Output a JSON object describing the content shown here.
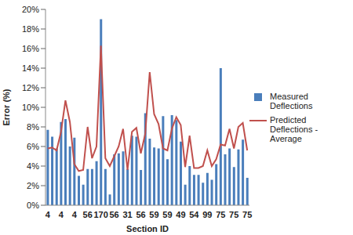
{
  "chart_data": {
    "type": "bar",
    "x_label": "Section ID",
    "y_label": "Error (%)",
    "categories": [
      "4",
      null,
      null,
      "4",
      null,
      null,
      "4",
      null,
      null,
      "56",
      null,
      null,
      "170",
      null,
      null,
      "56",
      null,
      null,
      "31",
      null,
      null,
      "56",
      null,
      null,
      "59",
      null,
      null,
      "59",
      null,
      null,
      "49",
      null,
      null,
      "54",
      null,
      null,
      "99",
      null,
      null,
      "75",
      null,
      null,
      "75",
      null,
      null,
      "75"
    ],
    "series": [
      {
        "name": "Measured Deflections",
        "type": "bar",
        "color": "#4a7ebb",
        "values": [
          7.7,
          7.0,
          5.8,
          8.5,
          8.8,
          6.0,
          6.9,
          3.0,
          2.1,
          3.7,
          3.7,
          4.5,
          19.0,
          3.7,
          1.1,
          5.2,
          5.3,
          5.5,
          3.7,
          7.1,
          7.0,
          3.6,
          9.4,
          6.8,
          5.9,
          5.8,
          9.1,
          4.7,
          9.2,
          8.7,
          6.5,
          2.1,
          4.0,
          3.1,
          3.1,
          2.3,
          3.3,
          2.6,
          4.2,
          14.0,
          5.2,
          5.8,
          3.9,
          5.7,
          6.7,
          2.8
        ]
      },
      {
        "name": "Predicted Deflections - Average",
        "type": "line",
        "color": "#c0504d",
        "values": [
          5.8,
          5.9,
          5.6,
          7.5,
          10.7,
          8.5,
          4.2,
          3.5,
          3.6,
          8.0,
          4.8,
          6.0,
          16.3,
          4.8,
          4.0,
          5.0,
          6.0,
          7.8,
          3.6,
          7.5,
          7.9,
          5.3,
          7.3,
          13.6,
          9.3,
          8.3,
          5.8,
          5.6,
          7.8,
          9.0,
          8.2,
          3.9,
          7.1,
          3.8,
          3.8,
          4.0,
          5.6,
          4.0,
          4.7,
          6.2,
          6.1,
          7.8,
          5.8,
          8.0,
          8.4,
          5.6
        ]
      }
    ],
    "ylim": [
      0,
      20
    ],
    "yticks": [
      {
        "value": 0,
        "label": "0%"
      },
      {
        "value": 2,
        "label": "2%"
      },
      {
        "value": 4,
        "label": "4%"
      },
      {
        "value": 6,
        "label": "6%"
      },
      {
        "value": 8,
        "label": "8%"
      },
      {
        "value": 10,
        "label": "10%"
      },
      {
        "value": 12,
        "label": "12%"
      },
      {
        "value": 14,
        "label": "14%"
      },
      {
        "value": 16,
        "label": "16%"
      },
      {
        "value": 18,
        "label": "18%"
      },
      {
        "value": 20,
        "label": "20%"
      }
    ],
    "grid": false,
    "legend": "right"
  }
}
